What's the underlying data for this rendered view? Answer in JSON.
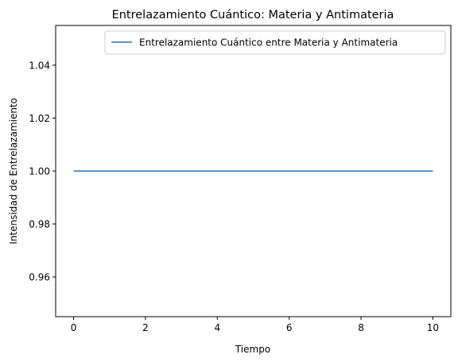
{
  "chart_data": {
    "type": "line",
    "title": "Entrelazamiento Cuántico: Materia y Antimateria",
    "xlabel": "Tiempo",
    "ylabel": "Intensidad de Entrelazamiento",
    "xlim": [
      -0.5,
      10.5
    ],
    "ylim": [
      0.945,
      1.055
    ],
    "xticks": [
      0,
      2,
      4,
      6,
      8,
      10
    ],
    "xtick_labels": [
      "0",
      "2",
      "4",
      "6",
      "8",
      "10"
    ],
    "yticks": [
      0.96,
      0.98,
      1.0,
      1.02,
      1.04
    ],
    "ytick_labels": [
      "0.96",
      "0.98",
      "1.00",
      "1.02",
      "1.04"
    ],
    "grid": false,
    "legend_position": "top-right",
    "series": [
      {
        "name": "Entrelazamiento Cuántico entre Materia y Antimateria",
        "color": "#1f77b4",
        "x": [
          0,
          10
        ],
        "y": [
          1.0,
          1.0
        ]
      }
    ]
  }
}
